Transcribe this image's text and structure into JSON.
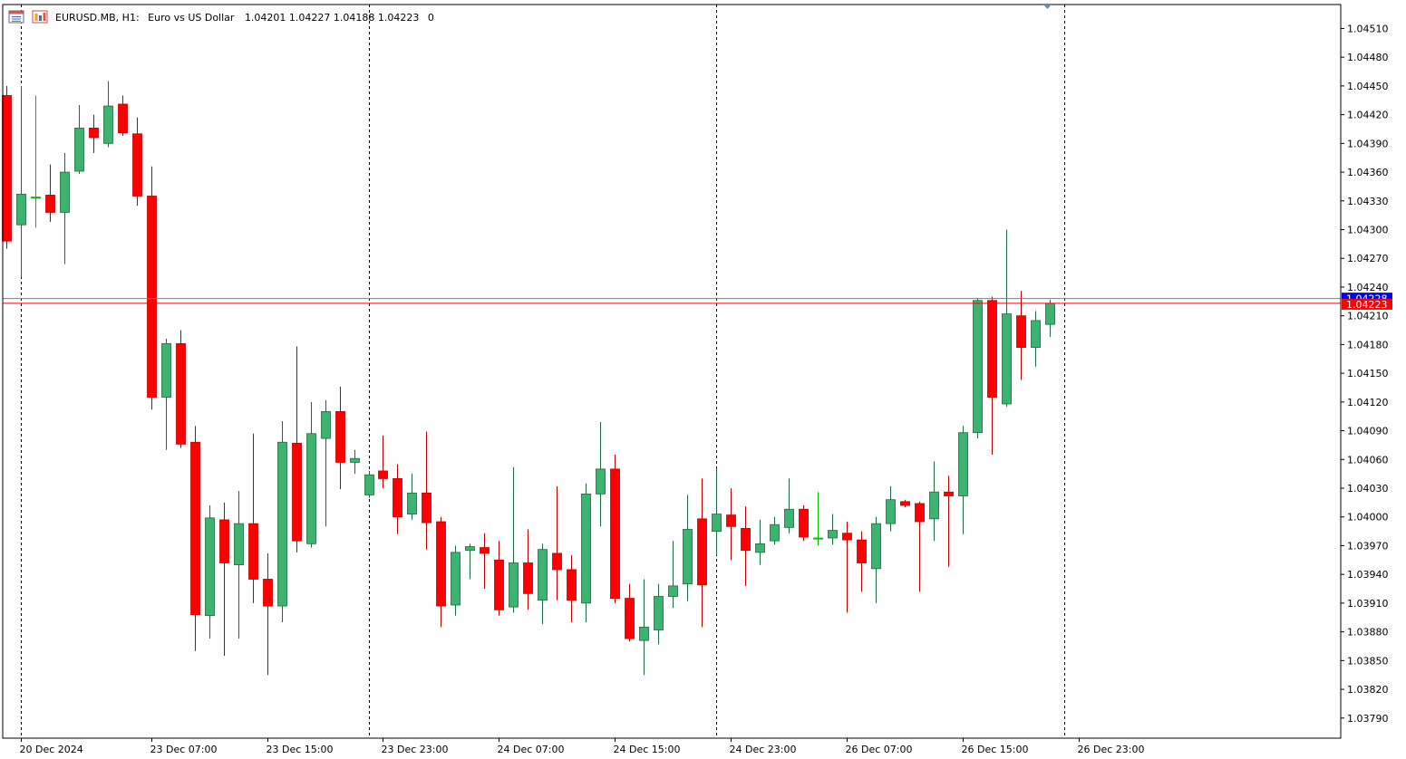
{
  "header": {
    "symbol": "EURUSD.MB, H1:",
    "description": "Euro vs US Dollar",
    "ohlc": "1.04201 1.04227 1.04188 1.04223",
    "volume": "0",
    "icons": [
      "window-list-icon",
      "chart-window-icon"
    ]
  },
  "price_tags": {
    "ask": "1.04228",
    "bid": "1.04223",
    "ask_color": "#0000ff",
    "bid_color": "#ff0000"
  },
  "colors": {
    "bull": "#3cb371",
    "bear": "#ff0000",
    "doji": "#00c000",
    "grid": "#000000",
    "bid_line": "#ff0000",
    "ask_line": "#7f7f7f"
  },
  "chart_data": {
    "type": "candlestick",
    "symbol": "EURUSD.MB",
    "timeframe": "H1",
    "ylim": [
      1.03769,
      1.04535
    ],
    "y_ticks": [
      "1.04510",
      "1.04480",
      "1.04450",
      "1.04420",
      "1.04390",
      "1.04360",
      "1.04330",
      "1.04300",
      "1.04270",
      "1.04240",
      "1.04210",
      "1.04180",
      "1.04150",
      "1.04120",
      "1.04090",
      "1.04060",
      "1.04030",
      "1.04000",
      "1.03970",
      "1.03940",
      "1.03910",
      "1.03880",
      "1.03850",
      "1.03820",
      "1.03790"
    ],
    "x_ticks": [
      {
        "label": "20 Dec 2024",
        "index": 1
      },
      {
        "label": "23 Dec 07:00",
        "index": 10
      },
      {
        "label": "23 Dec 15:00",
        "index": 18
      },
      {
        "label": "23 Dec 23:00",
        "index": 26
      },
      {
        "label": "24 Dec 07:00",
        "index": 34
      },
      {
        "label": "24 Dec 15:00",
        "index": 42
      },
      {
        "label": "24 Dec 23:00",
        "index": 50
      },
      {
        "label": "26 Dec 07:00",
        "index": 58
      },
      {
        "label": "26 Dec 15:00",
        "index": 66
      },
      {
        "label": "26 Dec 23:00",
        "index": 74
      }
    ],
    "period_separators": [
      1,
      25,
      49,
      73
    ],
    "grid": false,
    "candles": [
      {
        "o": 1.0444,
        "h": 1.0445,
        "l": 1.0428,
        "c": 1.04288
      },
      {
        "o": 1.04305,
        "h": 1.0445,
        "l": 1.0425,
        "c": 1.04337
      },
      {
        "o": 1.04334,
        "h": 1.0444,
        "l": 1.04302,
        "c": 1.04334
      },
      {
        "o": 1.04336,
        "h": 1.04368,
        "l": 1.04308,
        "c": 1.04318
      },
      {
        "o": 1.04318,
        "h": 1.0438,
        "l": 1.04264,
        "c": 1.0436
      },
      {
        "o": 1.04361,
        "h": 1.0443,
        "l": 1.04358,
        "c": 1.04406
      },
      {
        "o": 1.04406,
        "h": 1.0442,
        "l": 1.0438,
        "c": 1.04396
      },
      {
        "o": 1.0439,
        "h": 1.04455,
        "l": 1.04386,
        "c": 1.04429
      },
      {
        "o": 1.04431,
        "h": 1.0444,
        "l": 1.04398,
        "c": 1.04401
      },
      {
        "o": 1.044,
        "h": 1.04417,
        "l": 1.04325,
        "c": 1.04335
      },
      {
        "o": 1.04335,
        "h": 1.04366,
        "l": 1.04112,
        "c": 1.04125
      },
      {
        "o": 1.04125,
        "h": 1.04186,
        "l": 1.0407,
        "c": 1.04181
      },
      {
        "o": 1.04181,
        "h": 1.04195,
        "l": 1.04072,
        "c": 1.04076
      },
      {
        "o": 1.04078,
        "h": 1.04095,
        "l": 1.0386,
        "c": 1.03898
      },
      {
        "o": 1.03897,
        "h": 1.04012,
        "l": 1.03873,
        "c": 1.03999
      },
      {
        "o": 1.03997,
        "h": 1.04015,
        "l": 1.03855,
        "c": 1.03952
      },
      {
        "o": 1.0395,
        "h": 1.04027,
        "l": 1.03873,
        "c": 1.03993
      },
      {
        "o": 1.03993,
        "h": 1.04087,
        "l": 1.0391,
        "c": 1.03935
      },
      {
        "o": 1.03935,
        "h": 1.03962,
        "l": 1.03835,
        "c": 1.03907
      },
      {
        "o": 1.03907,
        "h": 1.041,
        "l": 1.0389,
        "c": 1.04078
      },
      {
        "o": 1.04077,
        "h": 1.04178,
        "l": 1.03963,
        "c": 1.03975
      },
      {
        "o": 1.03972,
        "h": 1.0412,
        "l": 1.03968,
        "c": 1.04087
      },
      {
        "o": 1.04082,
        "h": 1.04122,
        "l": 1.0399,
        "c": 1.0411
      },
      {
        "o": 1.0411,
        "h": 1.04136,
        "l": 1.04029,
        "c": 1.04057
      },
      {
        "o": 1.04057,
        "h": 1.0407,
        "l": 1.04045,
        "c": 1.04061
      },
      {
        "o": 1.04023,
        "h": 1.04048,
        "l": 1.0402,
        "c": 1.04044
      },
      {
        "o": 1.04048,
        "h": 1.04085,
        "l": 1.0403,
        "c": 1.0404
      },
      {
        "o": 1.0404,
        "h": 1.04055,
        "l": 1.03982,
        "c": 1.04
      },
      {
        "o": 1.04003,
        "h": 1.04045,
        "l": 1.03997,
        "c": 1.04025
      },
      {
        "o": 1.04025,
        "h": 1.04089,
        "l": 1.03966,
        "c": 1.03994
      },
      {
        "o": 1.03995,
        "h": 1.04,
        "l": 1.03885,
        "c": 1.03907
      },
      {
        "o": 1.03908,
        "h": 1.0397,
        "l": 1.03897,
        "c": 1.03963
      },
      {
        "o": 1.03965,
        "h": 1.03972,
        "l": 1.03935,
        "c": 1.03969
      },
      {
        "o": 1.03968,
        "h": 1.03983,
        "l": 1.03925,
        "c": 1.03962
      },
      {
        "o": 1.03955,
        "h": 1.03975,
        "l": 1.03897,
        "c": 1.03903
      },
      {
        "o": 1.03906,
        "h": 1.04052,
        "l": 1.039,
        "c": 1.03952
      },
      {
        "o": 1.03952,
        "h": 1.03987,
        "l": 1.03903,
        "c": 1.0392
      },
      {
        "o": 1.03913,
        "h": 1.03972,
        "l": 1.03888,
        "c": 1.03966
      },
      {
        "o": 1.03962,
        "h": 1.04032,
        "l": 1.03913,
        "c": 1.03945
      },
      {
        "o": 1.03945,
        "h": 1.0396,
        "l": 1.0389,
        "c": 1.03913
      },
      {
        "o": 1.0391,
        "h": 1.04035,
        "l": 1.0389,
        "c": 1.04024
      },
      {
        "o": 1.04024,
        "h": 1.04099,
        "l": 1.0399,
        "c": 1.0405
      },
      {
        "o": 1.0405,
        "h": 1.04065,
        "l": 1.0391,
        "c": 1.03915
      },
      {
        "o": 1.03915,
        "h": 1.0393,
        "l": 1.0387,
        "c": 1.03873
      },
      {
        "o": 1.03871,
        "h": 1.03935,
        "l": 1.03835,
        "c": 1.03885
      },
      {
        "o": 1.03882,
        "h": 1.0393,
        "l": 1.03867,
        "c": 1.03917
      },
      {
        "o": 1.03917,
        "h": 1.03975,
        "l": 1.03905,
        "c": 1.03928
      },
      {
        "o": 1.0393,
        "h": 1.04023,
        "l": 1.03912,
        "c": 1.03987
      },
      {
        "o": 1.03998,
        "h": 1.0404,
        "l": 1.03885,
        "c": 1.03929
      },
      {
        "o": 1.03985,
        "h": 1.0405,
        "l": 1.0396,
        "c": 1.04003
      },
      {
        "o": 1.04002,
        "h": 1.0403,
        "l": 1.03955,
        "c": 1.0399
      },
      {
        "o": 1.03988,
        "h": 1.04011,
        "l": 1.03928,
        "c": 1.03965
      },
      {
        "o": 1.03963,
        "h": 1.03997,
        "l": 1.0395,
        "c": 1.03972
      },
      {
        "o": 1.03975,
        "h": 1.04,
        "l": 1.03971,
        "c": 1.03992
      },
      {
        "o": 1.03989,
        "h": 1.0404,
        "l": 1.03983,
        "c": 1.04008
      },
      {
        "o": 1.04008,
        "h": 1.04012,
        "l": 1.03975,
        "c": 1.03979
      },
      {
        "o": 1.03978,
        "h": 1.04026,
        "l": 1.0397,
        "c": 1.03978
      },
      {
        "o": 1.03978,
        "h": 1.04003,
        "l": 1.03971,
        "c": 1.03986
      },
      {
        "o": 1.03983,
        "h": 1.03995,
        "l": 1.039,
        "c": 1.03976
      },
      {
        "o": 1.03976,
        "h": 1.03985,
        "l": 1.03922,
        "c": 1.03952
      },
      {
        "o": 1.03946,
        "h": 1.04,
        "l": 1.0391,
        "c": 1.03993
      },
      {
        "o": 1.03993,
        "h": 1.04032,
        "l": 1.03985,
        "c": 1.04018
      },
      {
        "o": 1.04016,
        "h": 1.04018,
        "l": 1.0401,
        "c": 1.04012
      },
      {
        "o": 1.04014,
        "h": 1.04016,
        "l": 1.03922,
        "c": 1.03995
      },
      {
        "o": 1.03998,
        "h": 1.04058,
        "l": 1.03975,
        "c": 1.04026
      },
      {
        "o": 1.04026,
        "h": 1.04043,
        "l": 1.03948,
        "c": 1.04022
      },
      {
        "o": 1.04022,
        "h": 1.04095,
        "l": 1.03982,
        "c": 1.04088
      },
      {
        "o": 1.04088,
        "h": 1.04228,
        "l": 1.04082,
        "c": 1.04226
      },
      {
        "o": 1.04226,
        "h": 1.0423,
        "l": 1.04065,
        "c": 1.04125
      },
      {
        "o": 1.04118,
        "h": 1.043,
        "l": 1.04115,
        "c": 1.04212
      },
      {
        "o": 1.0421,
        "h": 1.04236,
        "l": 1.04143,
        "c": 1.04177
      },
      {
        "o": 1.04177,
        "h": 1.04215,
        "l": 1.04157,
        "c": 1.04205
      },
      {
        "o": 1.04201,
        "h": 1.04227,
        "l": 1.04188,
        "c": 1.04223
      }
    ]
  }
}
